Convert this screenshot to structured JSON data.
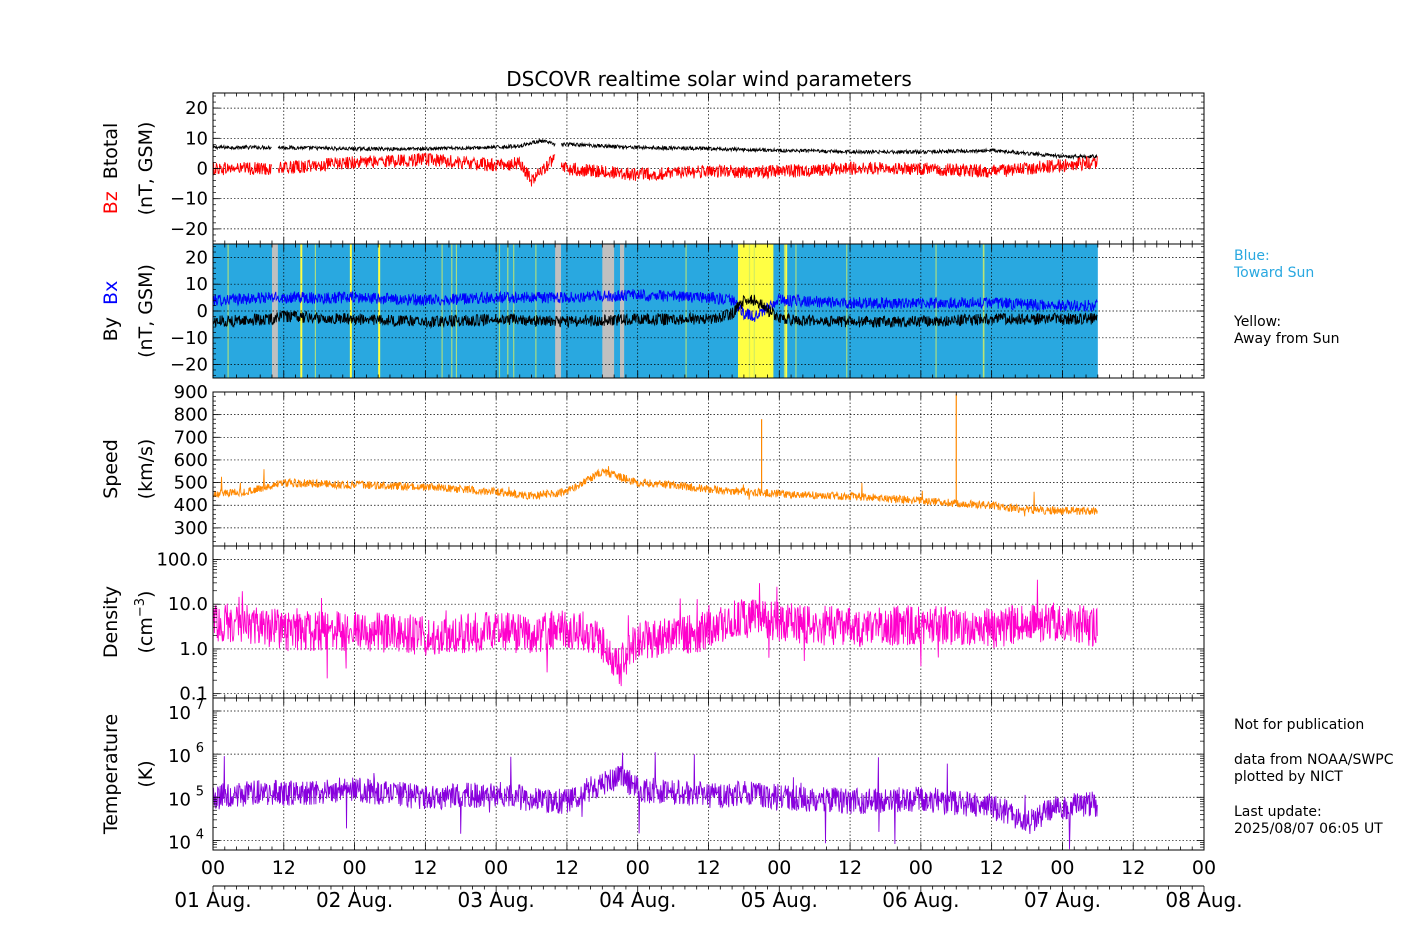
{
  "title": "DSCOVR realtime solar wind parameters",
  "colors": {
    "bz": "#ff0000",
    "btotal": "#000000",
    "bx": "#0000ff",
    "by": "#000000",
    "speed": "#ff8800",
    "density": "#ff00cc",
    "temperature": "#8800dd",
    "toward_sun": "#29a8e0",
    "away_from_sun": "#ffff44",
    "no_data": "#c0c0c0"
  },
  "side_notes": {
    "blue_label": "Blue:",
    "blue_desc": "Toward Sun",
    "yellow_label": "Yellow:",
    "yellow_desc": "Away from Sun",
    "not_for_pub": "Not for publication",
    "data_from": "data from NOAA/SWPC",
    "plotted_by": "plotted by NICT",
    "last_update_label": "Last update:",
    "last_update": "2025/08/07 06:05 UT"
  },
  "chart_data": [
    {
      "type": "line",
      "panel": "magnetic_total",
      "ylabel_parts": [
        "Bz",
        "Btotal",
        "(nT, GSM)"
      ],
      "ylim": [
        -25,
        25
      ],
      "yticks": [
        -20,
        -10,
        0,
        10,
        20
      ],
      "ytick_labels": [
        "−20",
        "−10",
        "0",
        "10",
        "20"
      ],
      "x_unit": "hours since 2025-08-01 00:00 UT",
      "series": [
        {
          "name": "Btotal",
          "color": "#000000",
          "x": [
            0,
            10,
            11,
            24,
            36,
            48,
            52,
            55,
            56,
            58,
            60,
            72,
            84,
            96,
            108,
            120,
            132,
            144,
            150
          ],
          "y": [
            7,
            7,
            7,
            6.5,
            6.5,
            7,
            7.5,
            9,
            9,
            8,
            8,
            7,
            6.5,
            6,
            5.5,
            5.5,
            6,
            4,
            4
          ]
        },
        {
          "name": "Bz",
          "color": "#ff0000",
          "x": [
            0,
            10,
            11,
            24,
            36,
            48,
            52,
            54,
            56,
            58,
            60,
            72,
            84,
            96,
            108,
            120,
            132,
            144,
            150
          ],
          "y": [
            0,
            0,
            0,
            2,
            3,
            1,
            2,
            -4,
            0,
            3,
            0,
            -2,
            -1,
            -1,
            0,
            0,
            -1,
            1,
            2
          ]
        }
      ],
      "gaps": [
        [
          10,
          11
        ],
        [
          58,
          59
        ]
      ]
    },
    {
      "type": "line",
      "panel": "magnetic_components",
      "ylabel_parts": [
        "By",
        "Bx",
        "(nT, GSM)"
      ],
      "ylim": [
        -25,
        25
      ],
      "yticks": [
        -20,
        -10,
        0,
        10,
        20
      ],
      "ytick_labels": [
        "−20",
        "−10",
        "0",
        "10",
        "20"
      ],
      "x_unit": "hours since 2025-08-01 00:00 UT",
      "sector_bands": {
        "toward_sun": [
          [
            0,
            150
          ]
        ],
        "away_from_sun": [
          [
            89,
            95
          ],
          [
            14.8,
            15.1
          ],
          [
            23.2,
            23.5
          ],
          [
            28,
            28.3
          ],
          [
            97,
            97.3
          ]
        ],
        "no_data": [
          [
            10,
            11
          ],
          [
            58,
            59
          ],
          [
            66,
            68
          ],
          [
            69,
            69.7
          ]
        ]
      },
      "series": [
        {
          "name": "Bx",
          "color": "#0000ff",
          "x": [
            0,
            10,
            11,
            24,
            36,
            48,
            60,
            72,
            84,
            88,
            90,
            92,
            96,
            108,
            120,
            132,
            144,
            150
          ],
          "y": [
            4,
            5,
            5,
            5,
            4,
            5,
            5,
            6,
            5,
            4,
            -1,
            -2,
            4,
            3,
            3,
            3,
            2,
            2
          ]
        },
        {
          "name": "By",
          "color": "#000000",
          "x": [
            0,
            10,
            11,
            24,
            36,
            48,
            60,
            72,
            84,
            88,
            90,
            92,
            96,
            108,
            120,
            132,
            144,
            150
          ],
          "y": [
            -4,
            -3,
            -2,
            -3,
            -4,
            -3,
            -4,
            -3,
            -3,
            -1,
            4,
            4,
            -3,
            -4,
            -4,
            -3,
            -3,
            -3
          ]
        }
      ]
    },
    {
      "type": "line",
      "panel": "speed",
      "ylabel_parts": [
        "Speed",
        "(km/s)"
      ],
      "ylim": [
        220,
        900
      ],
      "yticks": [
        300,
        400,
        500,
        600,
        700,
        800,
        900
      ],
      "ytick_labels": [
        "300",
        "400",
        "500",
        "600",
        "700",
        "800",
        "900"
      ],
      "x_unit": "hours since 2025-08-01 00:00 UT",
      "series": [
        {
          "name": "Speed",
          "color": "#ff8800",
          "x": [
            0,
            6,
            12,
            24,
            36,
            48,
            54,
            60,
            66,
            72,
            78,
            84,
            90,
            96,
            108,
            120,
            126,
            132,
            138,
            144,
            150
          ],
          "y": [
            450,
            460,
            500,
            490,
            480,
            460,
            440,
            460,
            550,
            500,
            490,
            470,
            460,
            450,
            440,
            420,
            410,
            400,
            380,
            375,
            375
          ]
        }
      ],
      "spikes": [
        [
          93,
          780
        ],
        [
          126,
          890
        ]
      ]
    },
    {
      "type": "line",
      "panel": "density",
      "ylabel_parts": [
        "Density",
        "(cm",
        "−3",
        ")"
      ],
      "yscale": "log",
      "ylim": [
        0.08,
        200
      ],
      "yticks": [
        0.1,
        1.0,
        10.0,
        100.0
      ],
      "ytick_labels": [
        "0.1",
        "1.0",
        "10.0",
        "100.0"
      ],
      "x_unit": "hours since 2025-08-01 00:00 UT",
      "series": [
        {
          "name": "Density",
          "color": "#ff00cc",
          "x": [
            0,
            6,
            10,
            12,
            24,
            36,
            48,
            54,
            60,
            66,
            69,
            72,
            78,
            84,
            90,
            96,
            108,
            120,
            132,
            144,
            150
          ],
          "y": [
            4,
            3.5,
            3,
            2.5,
            2.5,
            2,
            2.5,
            2,
            3,
            1.2,
            0.3,
            1.5,
            2,
            2.5,
            5,
            4,
            3,
            3.5,
            3,
            4,
            3
          ]
        }
      ]
    },
    {
      "type": "line",
      "panel": "temperature",
      "ylabel_parts": [
        "Temperature",
        "(K)"
      ],
      "yscale": "log",
      "ylim": [
        6000,
        20000000
      ],
      "yticks": [
        10000,
        100000,
        1000000,
        10000000
      ],
      "ytick_labels": [
        "10",
        "4",
        "10",
        "5",
        "10",
        "6",
        "10",
        "7"
      ],
      "x_unit": "hours since 2025-08-01 00:00 UT",
      "series": [
        {
          "name": "Temperature",
          "color": "#8800dd",
          "x": [
            0,
            6,
            10,
            12,
            24,
            36,
            48,
            54,
            60,
            66,
            69,
            72,
            78,
            84,
            90,
            96,
            108,
            120,
            132,
            138,
            144,
            150
          ],
          "y": [
            100000,
            120000,
            130000,
            120000,
            150000,
            100000,
            120000,
            90000,
            80000,
            200000,
            300000,
            150000,
            130000,
            110000,
            120000,
            100000,
            80000,
            90000,
            60000,
            25000,
            60000,
            70000
          ]
        }
      ]
    }
  ],
  "x_axis": {
    "xlim": [
      0,
      168
    ],
    "tick_hours": [
      0,
      12,
      24,
      36,
      48,
      60,
      72,
      84,
      96,
      108,
      120,
      132,
      144,
      156,
      168
    ],
    "tick_labels": [
      "00",
      "12",
      "00",
      "12",
      "00",
      "12",
      "00",
      "12",
      "00",
      "12",
      "00",
      "12",
      "00",
      "12",
      "00"
    ],
    "date_labels": [
      "01 Aug.",
      "02 Aug.",
      "03 Aug.",
      "04 Aug.",
      "05 Aug.",
      "06 Aug.",
      "07 Aug.",
      "08 Aug."
    ]
  }
}
